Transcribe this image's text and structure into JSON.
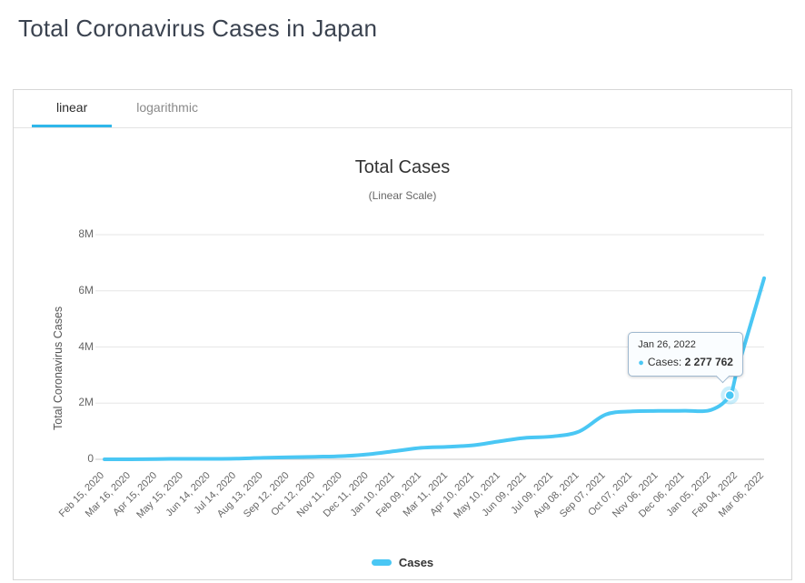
{
  "page": {
    "title": "Total Coronavirus Cases in Japan"
  },
  "tabs": [
    {
      "label": "linear",
      "active": true
    },
    {
      "label": "logarithmic",
      "active": false
    }
  ],
  "icons": {
    "bullet": "●"
  },
  "colors": {
    "accent": "#2fb7ea",
    "line": "#4ac7f4",
    "grid": "#e6e6e6",
    "axis": "#c9c9c9"
  },
  "chart_data": {
    "type": "line",
    "title": "Total Cases",
    "subtitle": "(Linear Scale)",
    "ylabel": "Total Coronavirus Cases",
    "xlabel": "",
    "ylim": [
      0,
      8000000
    ],
    "grid": true,
    "legend_position": "bottom",
    "yticks": [
      {
        "label": "0",
        "value": 0
      },
      {
        "label": "2M",
        "value": 2000000
      },
      {
        "label": "4M",
        "value": 4000000
      },
      {
        "label": "6M",
        "value": 6000000
      },
      {
        "label": "8M",
        "value": 8000000
      }
    ],
    "x_tick_labels": [
      "Feb 15, 2020",
      "Mar 16, 2020",
      "Apr 15, 2020",
      "May 15, 2020",
      "Jun 14, 2020",
      "Jul 14, 2020",
      "Aug 13, 2020",
      "Sep 12, 2020",
      "Oct 12, 2020",
      "Nov 11, 2020",
      "Dec 11, 2020",
      "Jan 10, 2021",
      "Feb 09, 2021",
      "Mar 11, 2021",
      "Apr 10, 2021",
      "May 10, 2021",
      "Jun 09, 2021",
      "Jul 09, 2021",
      "Aug 08, 2021",
      "Sep 07, 2021",
      "Oct 07, 2021",
      "Nov 06, 2021",
      "Dec 06, 2021",
      "Jan 05, 2022",
      "Feb 04, 2022",
      "Mar 06, 2022"
    ],
    "series": [
      {
        "name": "Cases",
        "color": "#4ac7f4",
        "points": [
          {
            "date": "Feb 15, 2020",
            "value": 350
          },
          {
            "date": "Mar 16, 2020",
            "value": 1500
          },
          {
            "date": "Apr 15, 2020",
            "value": 9000
          },
          {
            "date": "May 15, 2020",
            "value": 16200
          },
          {
            "date": "Jun 14, 2020",
            "value": 17600
          },
          {
            "date": "Jul 14, 2020",
            "value": 22500
          },
          {
            "date": "Aug 13, 2020",
            "value": 53000
          },
          {
            "date": "Sep 12, 2020",
            "value": 75000
          },
          {
            "date": "Oct 12, 2020",
            "value": 90000
          },
          {
            "date": "Nov 11, 2020",
            "value": 112000
          },
          {
            "date": "Dec 11, 2020",
            "value": 177000
          },
          {
            "date": "Jan 10, 2021",
            "value": 290000
          },
          {
            "date": "Feb 09, 2021",
            "value": 408000
          },
          {
            "date": "Mar 11, 2021",
            "value": 446000
          },
          {
            "date": "Apr 10, 2021",
            "value": 503000
          },
          {
            "date": "May 10, 2021",
            "value": 646000
          },
          {
            "date": "Jun 09, 2021",
            "value": 767000
          },
          {
            "date": "Jul 09, 2021",
            "value": 815000
          },
          {
            "date": "Aug 08, 2021",
            "value": 995000
          },
          {
            "date": "Sep 07, 2021",
            "value": 1594000
          },
          {
            "date": "Oct 07, 2021",
            "value": 1707000
          },
          {
            "date": "Nov 06, 2021",
            "value": 1724000
          },
          {
            "date": "Dec 06, 2021",
            "value": 1728000
          },
          {
            "date": "Jan 05, 2022",
            "value": 1762000
          },
          {
            "date": "Jan 26, 2022",
            "value": 2277762,
            "marker": true
          },
          {
            "date": "Feb 04, 2022",
            "value": 3250000
          },
          {
            "date": "Mar 06, 2022",
            "value": 6450000
          }
        ]
      }
    ],
    "tooltip": {
      "date": "Jan 26, 2022",
      "label": "Cases:",
      "value": 2277762,
      "value_display": "2 277 762"
    }
  },
  "legend": {
    "items": [
      {
        "label": "Cases",
        "color": "#4ac7f4"
      }
    ]
  }
}
